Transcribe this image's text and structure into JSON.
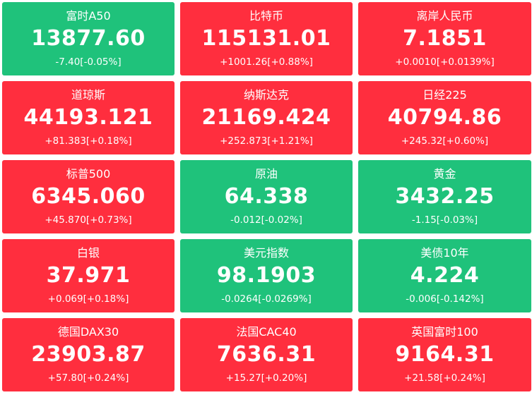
{
  "colors": {
    "up": "#ff2e3e",
    "down": "#1fc27b",
    "text": "#ffffff"
  },
  "tiles": [
    {
      "name": "富时A50",
      "price": "13877.60",
      "change": "-7.40[-0.05%]",
      "direction": "down"
    },
    {
      "name": "比特币",
      "price": "115131.01",
      "change": "+1001.26[+0.88%]",
      "direction": "up"
    },
    {
      "name": "离岸人民币",
      "price": "7.1851",
      "change": "+0.0010[+0.0139%]",
      "direction": "up"
    },
    {
      "name": "道琼斯",
      "price": "44193.121",
      "change": "+81.383[+0.18%]",
      "direction": "up"
    },
    {
      "name": "纳斯达克",
      "price": "21169.424",
      "change": "+252.873[+1.21%]",
      "direction": "up"
    },
    {
      "name": "日经225",
      "price": "40794.86",
      "change": "+245.32[+0.60%]",
      "direction": "up"
    },
    {
      "name": "标普500",
      "price": "6345.060",
      "change": "+45.870[+0.73%]",
      "direction": "up"
    },
    {
      "name": "原油",
      "price": "64.338",
      "change": "-0.012[-0.02%]",
      "direction": "down"
    },
    {
      "name": "黄金",
      "price": "3432.25",
      "change": "-1.15[-0.03%]",
      "direction": "down"
    },
    {
      "name": "白银",
      "price": "37.971",
      "change": "+0.069[+0.18%]",
      "direction": "up"
    },
    {
      "name": "美元指数",
      "price": "98.1903",
      "change": "-0.0264[-0.0269%]",
      "direction": "down"
    },
    {
      "name": "美债10年",
      "price": "4.224",
      "change": "-0.006[-0.142%]",
      "direction": "down"
    },
    {
      "name": "德国DAX30",
      "price": "23903.87",
      "change": "+57.80[+0.24%]",
      "direction": "up"
    },
    {
      "name": "法国CAC40",
      "price": "7636.31",
      "change": "+15.27[+0.20%]",
      "direction": "up"
    },
    {
      "name": "英国富时100",
      "price": "9164.31",
      "change": "+21.58[+0.24%]",
      "direction": "up"
    }
  ]
}
